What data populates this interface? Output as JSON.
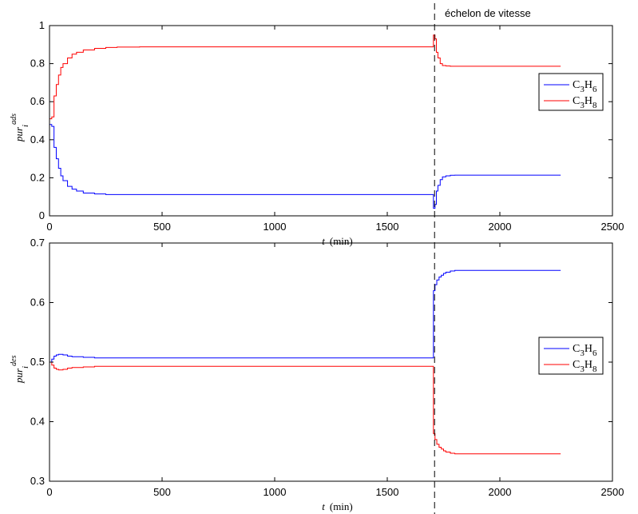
{
  "annotation": "échelon de vitesse",
  "annotation_x": 1710,
  "colors": {
    "C3H6": "#0000ff",
    "C3H8": "#ff0000",
    "axes": "#000000",
    "annotation_line": "#000000"
  },
  "chart_data": [
    {
      "type": "line",
      "ylabel": {
        "base": "pur",
        "sub": "i",
        "sup": "ads"
      },
      "xlabel": {
        "var": "t",
        "unit": "(min)"
      },
      "xlim": [
        0,
        2500
      ],
      "ylim": [
        0,
        1
      ],
      "xticks": [
        "0",
        "500",
        "1000",
        "1500",
        "2000",
        "2500"
      ],
      "yticks": [
        "0",
        "0.2",
        "0.4",
        "0.6",
        "0.8",
        "1"
      ],
      "grid": false,
      "legend_position": "right",
      "series": [
        {
          "name": "C3H6",
          "label_main": "C",
          "sub1": "3",
          "mid": "H",
          "sub2": "6",
          "color": "#0000ff",
          "x": [
            0,
            10,
            20,
            30,
            40,
            50,
            60,
            80,
            100,
            120,
            150,
            200,
            250,
            300,
            400,
            500,
            1000,
            1500,
            1700,
            1705,
            1712,
            1718,
            1725,
            1735,
            1745,
            1760,
            1780,
            1800,
            1900,
            2000,
            2100,
            2270
          ],
          "y": [
            0.48,
            0.47,
            0.36,
            0.3,
            0.25,
            0.21,
            0.185,
            0.155,
            0.14,
            0.13,
            0.12,
            0.115,
            0.112,
            0.112,
            0.112,
            0.112,
            0.112,
            0.112,
            0.112,
            0.04,
            0.06,
            0.13,
            0.16,
            0.19,
            0.205,
            0.21,
            0.213,
            0.214,
            0.214,
            0.214,
            0.214,
            0.214
          ]
        },
        {
          "name": "C3H8",
          "label_main": "C",
          "sub1": "3",
          "mid": "H",
          "sub2": "8",
          "color": "#ff0000",
          "x": [
            0,
            10,
            20,
            30,
            40,
            50,
            60,
            80,
            100,
            120,
            150,
            200,
            250,
            300,
            400,
            500,
            1000,
            1500,
            1700,
            1705,
            1712,
            1718,
            1725,
            1735,
            1745,
            1760,
            1780,
            1800,
            1900,
            2000,
            2100,
            2270
          ],
          "y": [
            0.51,
            0.52,
            0.63,
            0.69,
            0.74,
            0.78,
            0.8,
            0.83,
            0.85,
            0.86,
            0.872,
            0.88,
            0.885,
            0.887,
            0.888,
            0.888,
            0.888,
            0.888,
            0.888,
            0.95,
            0.93,
            0.86,
            0.83,
            0.8,
            0.79,
            0.788,
            0.786,
            0.786,
            0.786,
            0.786,
            0.786,
            0.786
          ]
        }
      ]
    },
    {
      "type": "line",
      "ylabel": {
        "base": "pur",
        "sub": "i",
        "sup": "des"
      },
      "xlabel": {
        "var": "t",
        "unit": "(min)"
      },
      "xlim": [
        0,
        2500
      ],
      "ylim": [
        0.3,
        0.7
      ],
      "xticks": [
        "0",
        "500",
        "1000",
        "1500",
        "2000",
        "2500"
      ],
      "yticks": [
        "0.3",
        "0.4",
        "0.5",
        "0.6",
        "0.7"
      ],
      "grid": false,
      "legend_position": "right",
      "series": [
        {
          "name": "C3H6",
          "label_main": "C",
          "sub1": "3",
          "mid": "H",
          "sub2": "6",
          "color": "#0000ff",
          "x": [
            0,
            10,
            20,
            30,
            40,
            60,
            80,
            100,
            150,
            200,
            300,
            500,
            1000,
            1500,
            1700,
            1705,
            1712,
            1720,
            1730,
            1740,
            1750,
            1760,
            1780,
            1800,
            1900,
            2000,
            2100,
            2270
          ],
          "y": [
            0.5,
            0.505,
            0.51,
            0.512,
            0.513,
            0.512,
            0.51,
            0.509,
            0.508,
            0.507,
            0.507,
            0.507,
            0.507,
            0.507,
            0.507,
            0.62,
            0.63,
            0.638,
            0.643,
            0.646,
            0.649,
            0.651,
            0.653,
            0.654,
            0.654,
            0.654,
            0.654,
            0.654
          ]
        },
        {
          "name": "C3H8",
          "label_main": "C",
          "sub1": "3",
          "mid": "H",
          "sub2": "8",
          "color": "#ff0000",
          "x": [
            0,
            10,
            20,
            30,
            40,
            60,
            80,
            100,
            150,
            200,
            300,
            500,
            1000,
            1500,
            1700,
            1705,
            1712,
            1720,
            1730,
            1740,
            1750,
            1760,
            1780,
            1800,
            1900,
            2000,
            2100,
            2270
          ],
          "y": [
            0.5,
            0.495,
            0.49,
            0.488,
            0.487,
            0.488,
            0.49,
            0.491,
            0.492,
            0.493,
            0.493,
            0.493,
            0.493,
            0.493,
            0.493,
            0.38,
            0.37,
            0.362,
            0.357,
            0.354,
            0.351,
            0.349,
            0.347,
            0.346,
            0.346,
            0.346,
            0.346,
            0.346
          ]
        }
      ]
    }
  ]
}
